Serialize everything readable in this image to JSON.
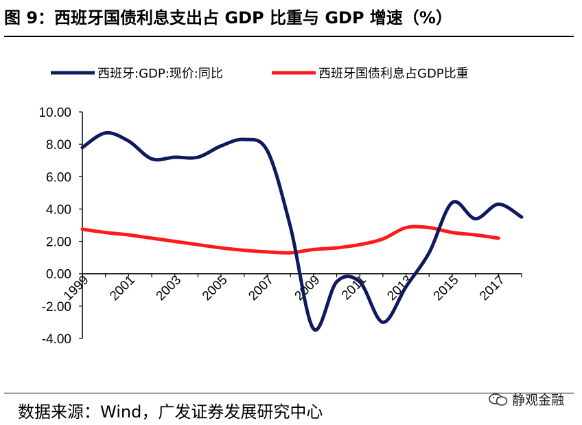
{
  "header": {
    "title": "图 9：西班牙国债利息支出占 GDP 比重与 GDP 增速（%）"
  },
  "footer": {
    "source": "数据来源：Wind，广发证券发展研究中心",
    "watermark": "静观金融"
  },
  "chart_data": {
    "type": "line",
    "title": "图 9：西班牙国债利息支出占 GDP 比重与 GDP 增速（%）",
    "xlabel": "",
    "ylabel": "",
    "xlim": [
      1999,
      2018
    ],
    "ylim": [
      -4,
      10
    ],
    "yticks": [
      -4,
      -2,
      0,
      2,
      4,
      6,
      8,
      10
    ],
    "ytick_labels": [
      "-4.00",
      "-2.00",
      "0.00",
      "2.00",
      "4.00",
      "6.00",
      "8.00",
      "10.00"
    ],
    "xticks": [
      1999,
      2001,
      2003,
      2005,
      2007,
      2009,
      2011,
      2013,
      2015,
      2017
    ],
    "xtick_labels": [
      "1999",
      "2001",
      "2003",
      "2005",
      "2007",
      "2009",
      "2011",
      "2013",
      "2015",
      "2017"
    ],
    "legend_position": "top",
    "colors": {
      "gdp": "#0d1a5e",
      "interest": "#ff1a1a"
    },
    "series": [
      {
        "name": "西班牙:GDP:现价:同比",
        "x": [
          1999,
          2000,
          2001,
          2002,
          2003,
          2004,
          2005,
          2006,
          2007,
          2008,
          2009,
          2010,
          2011,
          2012,
          2013,
          2014,
          2015,
          2016,
          2017,
          2018
        ],
        "values": [
          7.8,
          8.7,
          8.2,
          7.1,
          7.2,
          7.2,
          7.9,
          8.3,
          7.6,
          2.9,
          -3.4,
          -0.5,
          -0.5,
          -3.0,
          -0.8,
          1.3,
          4.4,
          3.4,
          4.3,
          3.5
        ]
      },
      {
        "name": "西班牙国债利息占GDP比重",
        "x": [
          1999,
          2000,
          2001,
          2002,
          2003,
          2004,
          2005,
          2006,
          2007,
          2008,
          2009,
          2010,
          2011,
          2012,
          2013,
          2014,
          2015,
          2016,
          2017
        ],
        "values": [
          2.75,
          2.55,
          2.4,
          2.2,
          2.0,
          1.8,
          1.6,
          1.45,
          1.35,
          1.3,
          1.5,
          1.6,
          1.8,
          2.15,
          2.85,
          2.85,
          2.55,
          2.4,
          2.2
        ]
      }
    ]
  }
}
